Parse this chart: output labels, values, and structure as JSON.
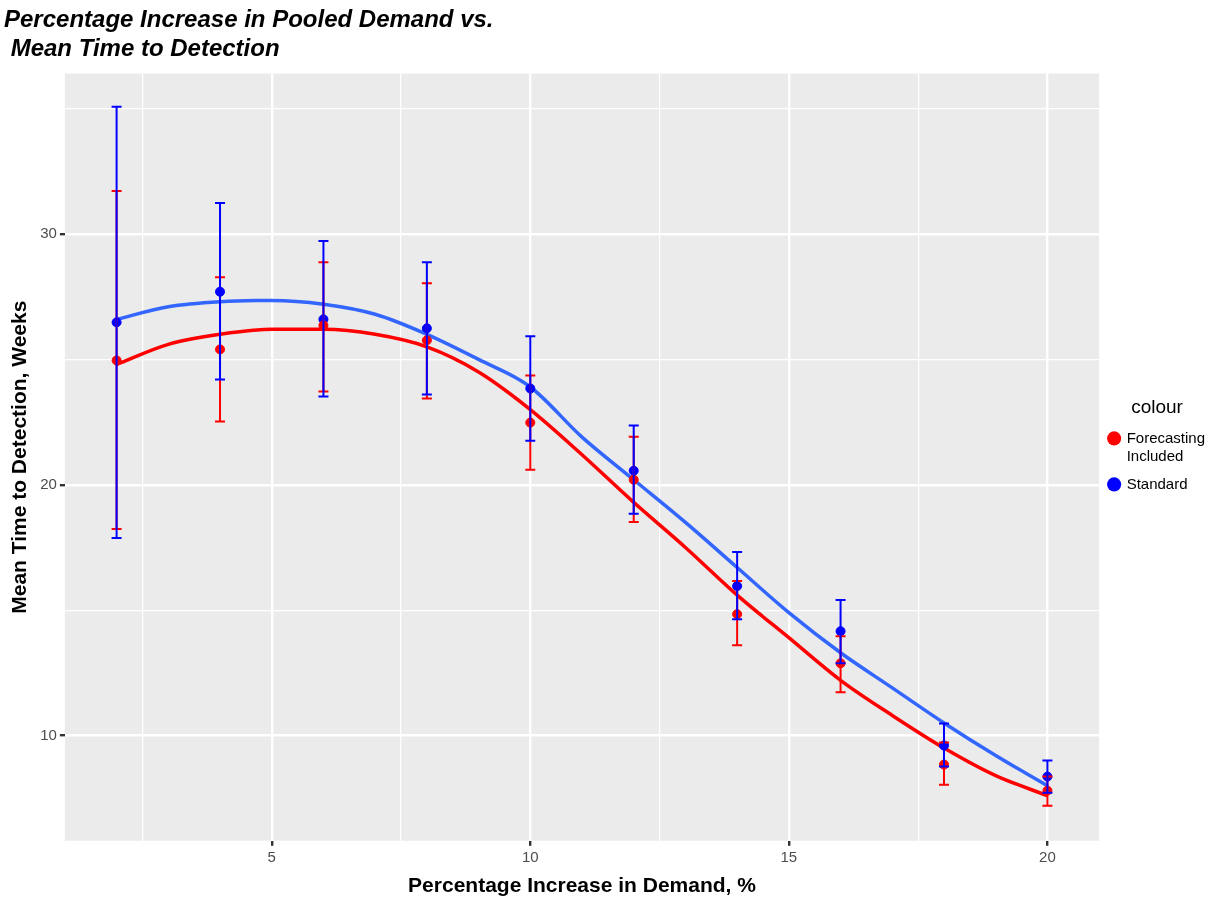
{
  "chart_data": {
    "type": "scatter",
    "title": "Percentage Increase in Pooled Demand vs.\n Mean Time to Detection",
    "xlabel": "Percentage Increase in Demand, %",
    "ylabel": "Mean Time to Detection, Weeks",
    "legend_title": "colour",
    "legend": "right",
    "grid": true,
    "marker": "circle",
    "xlim": [
      1,
      21
    ],
    "xticks": [
      {
        "value": 2.5,
        "label": null
      },
      5,
      {
        "value": 7.5,
        "label": null
      },
      10,
      {
        "value": 12.5,
        "label": null
      },
      15,
      {
        "value": 17.5,
        "label": null
      },
      20
    ],
    "ylim": [
      5.8,
      36.4
    ],
    "yticks": [
      10,
      {
        "value": 15,
        "label": null
      },
      20,
      {
        "value": 25,
        "label": null
      },
      30,
      {
        "value": 35,
        "label": null
      }
    ],
    "series": [
      {
        "type": "line",
        "marker": "none",
        "color": "#3366ff",
        "x": [
          2,
          3,
          4,
          5,
          6,
          7,
          8,
          9,
          10,
          11,
          12,
          13,
          14,
          15,
          16,
          17,
          18,
          19,
          20
        ],
        "values": [
          26.6,
          27.1,
          27.3,
          27.35,
          27.2,
          26.8,
          26.0,
          25.0,
          23.9,
          21.9,
          20.2,
          18.5,
          16.7,
          14.9,
          13.3,
          11.9,
          10.5,
          9.2,
          8.0
        ]
      },
      {
        "type": "line",
        "marker": "none",
        "color": "#ff0000",
        "x": [
          2,
          3,
          4,
          5,
          6,
          7,
          8,
          9,
          10,
          11,
          12,
          13,
          14,
          15,
          16,
          17,
          18,
          19,
          20
        ],
        "values": [
          24.8,
          25.6,
          26.0,
          26.2,
          26.2,
          26.0,
          25.5,
          24.5,
          23.0,
          21.2,
          19.3,
          17.5,
          15.6,
          13.9,
          12.2,
          10.8,
          9.5,
          8.4,
          7.6
        ]
      },
      {
        "name": "Forecasting\nIncluded",
        "color": "#ff0000",
        "x": [
          2,
          4,
          6,
          8,
          10,
          12,
          14,
          16,
          18,
          20
        ],
        "values": [
          24.96,
          25.4,
          26.36,
          25.76,
          22.48,
          20.2,
          14.84,
          12.88,
          8.84,
          7.8
        ],
        "errors": [
          [
            18.24,
            31.72
          ],
          [
            22.52,
            28.28
          ],
          [
            23.72,
            28.88
          ],
          [
            23.44,
            28.04
          ],
          [
            20.6,
            24.36
          ],
          [
            18.52,
            21.92
          ],
          [
            13.6,
            16.16
          ],
          [
            11.72,
            13.96
          ],
          [
            8.04,
            9.72
          ],
          [
            7.2,
            8.36
          ]
        ]
      },
      {
        "name": "Standard",
        "color": "#0000ff",
        "x": [
          2,
          4,
          6,
          8,
          10,
          12,
          14,
          16,
          18,
          20
        ],
        "values": [
          26.48,
          27.7,
          26.6,
          26.24,
          23.84,
          20.56,
          15.96,
          14.16,
          9.6,
          8.36
        ],
        "errors": [
          [
            17.88,
            35.08
          ],
          [
            24.2,
            31.24
          ],
          [
            23.52,
            29.72
          ],
          [
            23.6,
            28.88
          ],
          [
            21.76,
            25.92
          ],
          [
            18.84,
            22.36
          ],
          [
            14.64,
            17.32
          ],
          [
            12.88,
            15.4
          ],
          [
            8.76,
            10.48
          ],
          [
            7.72,
            9.0
          ]
        ]
      }
    ]
  }
}
